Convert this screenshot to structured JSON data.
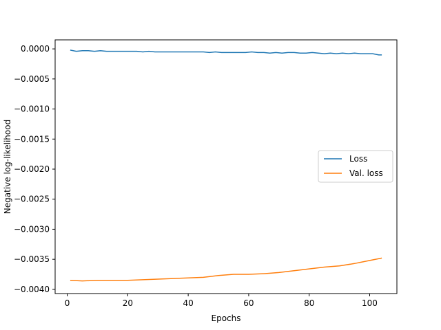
{
  "chart_data": {
    "type": "line",
    "title": "",
    "xlabel": "Epochs",
    "ylabel": "Negative log-likelihood",
    "xlim": [
      -4,
      109
    ],
    "ylim": [
      -0.00407,
      0.00015
    ],
    "xticks": [
      0,
      20,
      40,
      60,
      80,
      100
    ],
    "yticks": [
      0.0,
      -0.0005,
      -0.001,
      -0.0015,
      -0.002,
      -0.0025,
      -0.003,
      -0.0035,
      -0.004
    ],
    "ytick_labels": [
      "0.0000",
      "−0.0005",
      "−0.0010",
      "−0.0015",
      "−0.0020",
      "−0.0025",
      "−0.0030",
      "−0.0035",
      "−0.0040"
    ],
    "grid": false,
    "legend": {
      "position": "center-right"
    },
    "series": [
      {
        "name": "Loss",
        "color": "#1f77b4",
        "x": [
          1,
          3,
          5,
          7,
          9,
          11,
          13,
          15,
          17,
          19,
          21,
          23,
          25,
          27,
          29,
          31,
          33,
          35,
          37,
          39,
          41,
          43,
          45,
          47,
          49,
          51,
          53,
          55,
          57,
          59,
          61,
          63,
          65,
          67,
          69,
          71,
          73,
          75,
          77,
          79,
          81,
          83,
          85,
          87,
          89,
          91,
          93,
          95,
          97,
          99,
          101,
          103,
          104
        ],
        "values": [
          -2e-05,
          -4e-05,
          -3e-05,
          -3e-05,
          -4e-05,
          -3e-05,
          -4e-05,
          -4e-05,
          -4e-05,
          -4e-05,
          -4e-05,
          -4e-05,
          -5e-05,
          -4e-05,
          -5e-05,
          -5e-05,
          -5e-05,
          -5e-05,
          -5e-05,
          -5e-05,
          -5e-05,
          -5e-05,
          -5e-05,
          -6e-05,
          -5e-05,
          -6e-05,
          -6e-05,
          -6e-05,
          -6e-05,
          -6e-05,
          -5e-05,
          -6e-05,
          -6e-05,
          -7e-05,
          -6e-05,
          -7e-05,
          -6e-05,
          -6e-05,
          -7e-05,
          -7e-05,
          -6e-05,
          -7e-05,
          -8e-05,
          -7e-05,
          -8e-05,
          -7e-05,
          -8e-05,
          -7e-05,
          -8e-05,
          -8e-05,
          -8e-05,
          -0.0001,
          -0.0001
        ]
      },
      {
        "name": "Val. loss",
        "color": "#ff7f0e",
        "x": [
          1,
          5,
          10,
          15,
          20,
          25,
          30,
          35,
          40,
          45,
          50,
          55,
          60,
          65,
          70,
          75,
          80,
          85,
          90,
          95,
          100,
          104
        ],
        "values": [
          -0.00385,
          -0.00386,
          -0.00385,
          -0.00385,
          -0.00385,
          -0.00384,
          -0.00383,
          -0.00382,
          -0.00381,
          -0.0038,
          -0.00377,
          -0.00375,
          -0.00375,
          -0.00374,
          -0.00372,
          -0.00369,
          -0.00366,
          -0.00363,
          -0.00361,
          -0.00357,
          -0.00352,
          -0.00348
        ]
      }
    ]
  }
}
